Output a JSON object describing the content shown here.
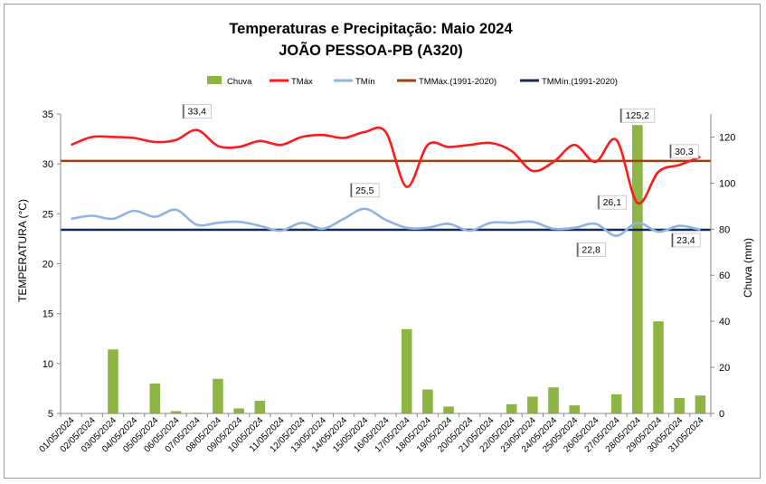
{
  "chart_data": {
    "type": "bar+line",
    "title": "Temperaturas e Precipitação: Maio 2024",
    "subtitle": "JOÃO PESSOA-PB (A320)",
    "ylabel_left": "TEMPERATURA (°C)",
    "ylabel_right": "Chuva (mm)",
    "y_left_range": [
      5,
      35
    ],
    "y_left_ticks": [
      "5",
      "10",
      "15",
      "20",
      "25",
      "30",
      "35"
    ],
    "y_right_range": [
      0,
      130
    ],
    "y_right_ticks": [
      "0",
      "20",
      "40",
      "60",
      "80",
      "100",
      "120"
    ],
    "categories": [
      "01/05/2024",
      "02/05/2024",
      "03/05/2024",
      "04/05/2024",
      "05/05/2024",
      "06/05/2024",
      "07/05/2024",
      "08/05/2024",
      "09/05/2024",
      "10/05/2024",
      "11/05/2024",
      "12/05/2024",
      "13/05/2024",
      "14/05/2024",
      "15/05/2024",
      "16/05/2024",
      "17/05/2024",
      "18/05/2024",
      "19/05/2024",
      "20/05/2024",
      "21/05/2024",
      "22/05/2024",
      "23/05/2024",
      "24/05/2024",
      "25/05/2024",
      "26/05/2024",
      "27/05/2024",
      "28/05/2024",
      "29/05/2024",
      "30/05/2024",
      "31/05/2024"
    ],
    "legend": [
      {
        "name": "Chuva",
        "color": "#8db543",
        "kind": "bar"
      },
      {
        "name": "TMáx",
        "color": "#ff1a1a",
        "kind": "line"
      },
      {
        "name": "TMín",
        "color": "#8fb4e3",
        "kind": "line"
      },
      {
        "name": "TMMáx.(1991-2020)",
        "color": "#a0400d",
        "kind": "line"
      },
      {
        "name": "TMMín.(1991-2020)",
        "color": "#152a55",
        "kind": "line"
      }
    ],
    "series": [
      {
        "name": "Chuva",
        "axis": "right",
        "values": [
          0,
          0,
          27.8,
          0.3,
          13,
          1,
          0.3,
          15,
          2.2,
          5.5,
          0.2,
          0,
          0,
          0,
          0,
          0,
          36.6,
          10.4,
          3,
          0,
          0,
          4,
          7.3,
          11.3,
          3.5,
          0,
          8.3,
          125.2,
          40,
          6.7,
          7.8
        ]
      },
      {
        "name": "TMáx",
        "axis": "left",
        "values": [
          31.9,
          32.7,
          32.7,
          32.6,
          32.2,
          32.4,
          33.4,
          31.8,
          31.7,
          32.3,
          31.9,
          32.7,
          32.9,
          32.6,
          33.2,
          33.2,
          27.7,
          31.9,
          31.7,
          31.9,
          32.1,
          31.3,
          29.3,
          30.2,
          31.9,
          30.2,
          32.4,
          26.1,
          29.2,
          29.9,
          30.7
        ]
      },
      {
        "name": "TMín",
        "axis": "left",
        "values": [
          24.5,
          24.8,
          24.5,
          25.3,
          24.7,
          25.4,
          23.9,
          24.1,
          24.2,
          23.8,
          23.3,
          24.1,
          23.5,
          24.5,
          25.5,
          24.4,
          23.6,
          23.6,
          24,
          23.3,
          24.1,
          24.1,
          24.2,
          23.5,
          23.6,
          24,
          22.8,
          24.1,
          23.2,
          23.8,
          23.4
        ]
      },
      {
        "name": "TMMáx.(1991-2020)",
        "axis": "left",
        "value": 30.3
      },
      {
        "name": "TMMín.(1991-2020)",
        "axis": "left",
        "value": 23.4
      }
    ],
    "annotations": [
      {
        "text": "33,4",
        "series": "TMáx",
        "day": 7
      },
      {
        "text": "25,5",
        "series": "TMín",
        "day": 15
      },
      {
        "text": "125,2",
        "series": "Chuva",
        "day": 28
      },
      {
        "text": "30,3",
        "series": "TMMáx.(1991-2020)",
        "day": 31
      },
      {
        "text": "26,1",
        "series": "TMáx",
        "day": 28
      },
      {
        "text": "22,8",
        "series": "TMín",
        "day": 27
      },
      {
        "text": "23,4",
        "series": "TMMín.(1991-2020)",
        "day": 31
      }
    ]
  }
}
